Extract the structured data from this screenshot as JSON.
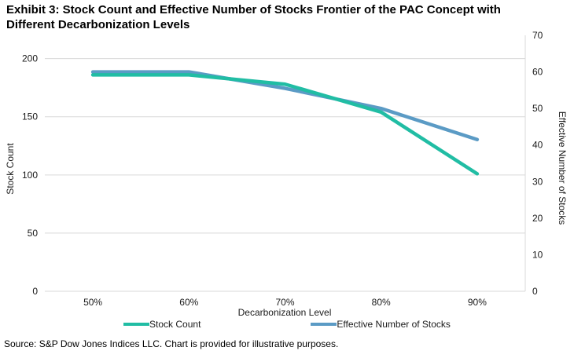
{
  "title": "Exhibit 3: Stock Count and Effective Number of Stocks Frontier of the PAC Concept with Different Decarbonization Levels",
  "source": "Source: S&P Dow Jones Indices LLC. Chart is provided for illustrative purposes.",
  "colors": {
    "stock_count_line": "#21BDA4",
    "effective_number_line": "#5B9BC5",
    "gridline": "#D9D9D9",
    "tick_text": "#1a1a1a"
  },
  "chart_data": {
    "type": "line",
    "categories": [
      "50%",
      "60%",
      "70%",
      "80%",
      "90%"
    ],
    "xlabel": "Decarbonization Level",
    "series": [
      {
        "name": "Stock Count",
        "axis": "left",
        "color": "#21BDA4",
        "values": [
          186,
          186,
          178,
          154,
          101
        ]
      },
      {
        "name": "Effective Number of Stocks",
        "axis": "right",
        "color": "#5B9BC5",
        "values": [
          60,
          60,
          55.5,
          50,
          41.5
        ]
      }
    ],
    "left_axis": {
      "label": "Stock Count",
      "min": 0,
      "max": 220,
      "ticks": [
        0,
        50,
        100,
        150,
        200
      ]
    },
    "right_axis": {
      "label": "Effective Number of Stocks",
      "min": 0,
      "max": 70,
      "ticks": [
        0,
        10,
        20,
        30,
        40,
        50,
        60,
        70
      ]
    },
    "grid": "horizontal-at-left-ticks",
    "legend_position": "bottom-center"
  }
}
